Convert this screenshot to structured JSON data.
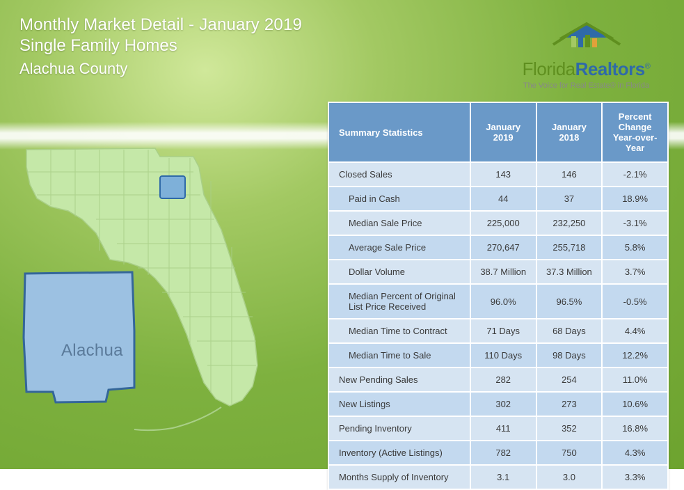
{
  "header": {
    "title": "Monthly Market Detail - January 2019",
    "sub1": "Single Family Homes",
    "sub2": "Alachua County"
  },
  "logo": {
    "name_part1": "Florida",
    "name_part2": "Realtors",
    "reg": "®",
    "tagline": "The Voice for Real Estate® in Florida",
    "roof_colors": {
      "house": "#5f8f1f",
      "roof": "#2f6aa8",
      "bars": [
        "#a3c963",
        "#2f6aa8",
        "#5f8f1f",
        "#e2a13a"
      ]
    }
  },
  "map": {
    "county_label": "Alachua",
    "fill_color": "#c5e8a8",
    "stroke_color": "#a9cf87",
    "highlight_fill": "#7eb0d9",
    "highlight_stroke": "#2f6aa8",
    "inset_fill": "#9cc1e2",
    "inset_stroke": "#346699"
  },
  "table": {
    "columns": [
      "Summary Statistics",
      "January 2019",
      "January 2018",
      "Percent Change Year-over-Year"
    ],
    "header_bg": "#6a99c8",
    "header_fg": "#ffffff",
    "row_odd_bg": "#d6e4f2",
    "row_even_bg": "#c3d9ef",
    "border_color": "#ffffff",
    "text_color": "#3a3a3a",
    "fontsize": 13,
    "rows": [
      {
        "indent": false,
        "metric": "Closed Sales",
        "v1": "143",
        "v2": "146",
        "pct": "-2.1%"
      },
      {
        "indent": true,
        "metric": "Paid in Cash",
        "v1": "44",
        "v2": "37",
        "pct": "18.9%"
      },
      {
        "indent": true,
        "metric": "Median Sale Price",
        "v1": "225,000",
        "v2": "232,250",
        "pct": "-3.1%"
      },
      {
        "indent": true,
        "metric": "Average Sale Price",
        "v1": "270,647",
        "v2": "255,718",
        "pct": "5.8%"
      },
      {
        "indent": true,
        "metric": "Dollar Volume",
        "v1": "38.7 Million",
        "v2": "37.3 Million",
        "pct": "3.7%"
      },
      {
        "indent": true,
        "metric": "Median Percent of Original List Price Received",
        "v1": "96.0%",
        "v2": "96.5%",
        "pct": "-0.5%"
      },
      {
        "indent": true,
        "metric": "Median Time to Contract",
        "v1": "71 Days",
        "v2": "68 Days",
        "pct": "4.4%"
      },
      {
        "indent": true,
        "metric": "Median Time to Sale",
        "v1": "110 Days",
        "v2": "98 Days",
        "pct": "12.2%"
      },
      {
        "indent": false,
        "metric": "New Pending Sales",
        "v1": "282",
        "v2": "254",
        "pct": "11.0%"
      },
      {
        "indent": false,
        "metric": "New Listings",
        "v1": "302",
        "v2": "273",
        "pct": "10.6%"
      },
      {
        "indent": false,
        "metric": "Pending Inventory",
        "v1": "411",
        "v2": "352",
        "pct": "16.8%"
      },
      {
        "indent": false,
        "metric": "Inventory (Active Listings)",
        "v1": "782",
        "v2": "750",
        "pct": "4.3%"
      },
      {
        "indent": false,
        "metric": "Months Supply of Inventory",
        "v1": "3.1",
        "v2": "3.0",
        "pct": "3.3%"
      }
    ]
  }
}
